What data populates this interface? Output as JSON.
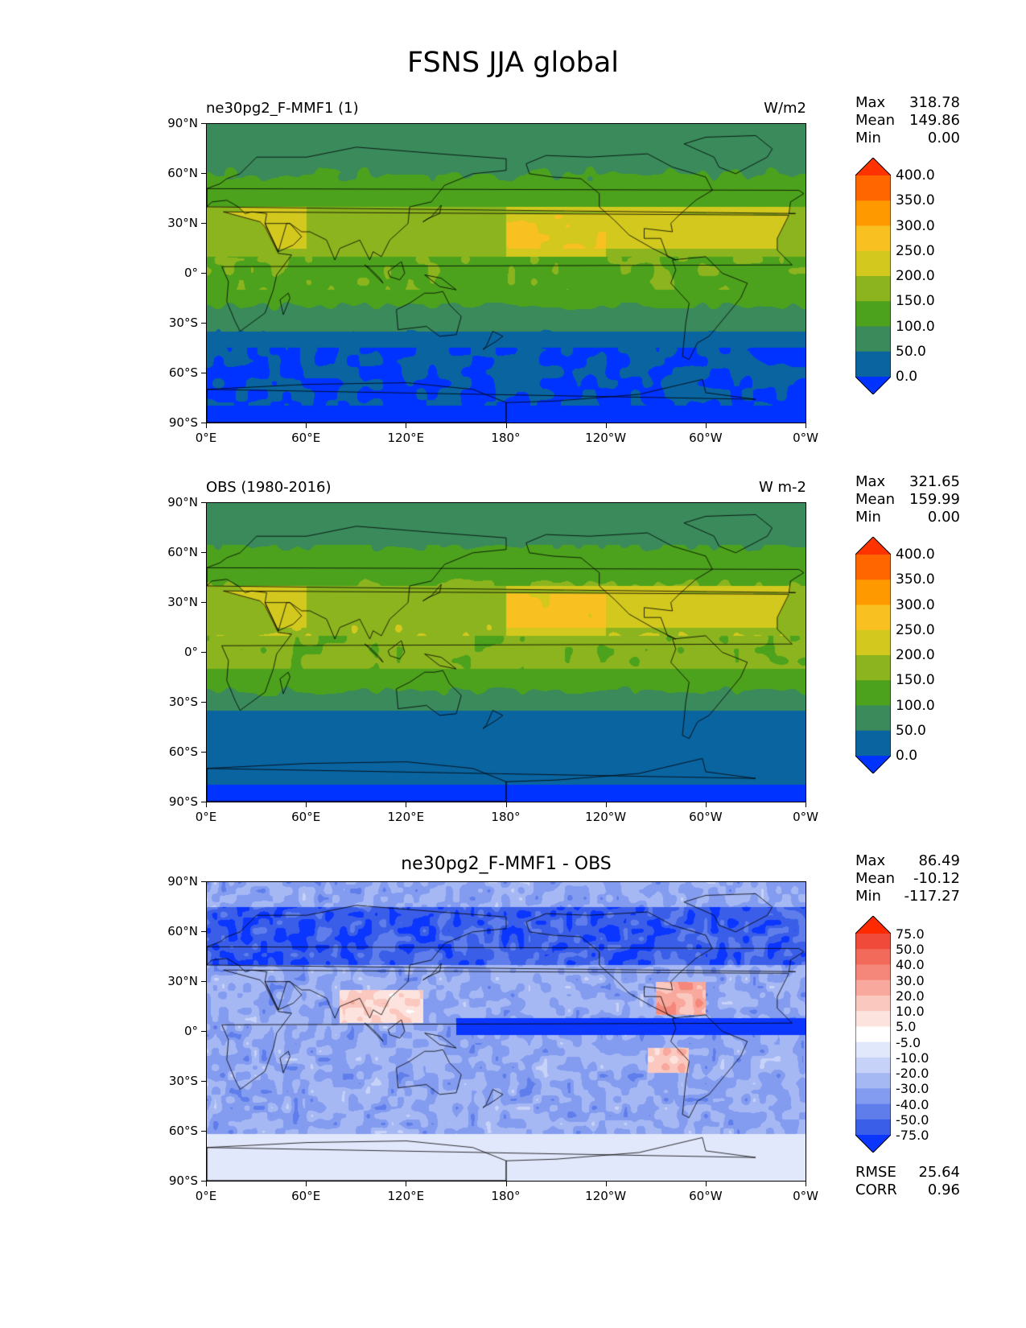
{
  "figure": {
    "title": "FSNS JJA global"
  },
  "panels": [
    {
      "id": "model",
      "title_left": "ne30pg2_F-MMF1 (1)",
      "title_right": "W/m2",
      "title_center": "",
      "stats": {
        "max_label": "Max",
        "max": "318.78",
        "mean_label": "Mean",
        "mean": "149.86",
        "min_label": "Min",
        "min": "0.00"
      },
      "colorbar": {
        "levels": [
          "400.0",
          "350.0",
          "300.0",
          "250.0",
          "200.0",
          "150.0",
          "100.0",
          "50.0",
          "0.0"
        ],
        "colors": [
          "#ff3300",
          "#ff6600",
          "#ff9900",
          "#f8c020",
          "#d2c81e",
          "#8cb41e",
          "#4ca21c",
          "#3a8a5c",
          "#0a64a0",
          "#0033ff"
        ]
      }
    },
    {
      "id": "obs",
      "title_left": "OBS (1980-2016)",
      "title_right": "W m-2",
      "title_center": "",
      "stats": {
        "max_label": "Max",
        "max": "321.65",
        "mean_label": "Mean",
        "mean": "159.99",
        "min_label": "Min",
        "min": "0.00"
      },
      "colorbar": {
        "levels": [
          "400.0",
          "350.0",
          "300.0",
          "250.0",
          "200.0",
          "150.0",
          "100.0",
          "50.0",
          "0.0"
        ],
        "colors": [
          "#ff3300",
          "#ff6600",
          "#ff9900",
          "#f8c020",
          "#d2c81e",
          "#8cb41e",
          "#4ca21c",
          "#3a8a5c",
          "#0a64a0",
          "#0033ff"
        ]
      }
    },
    {
      "id": "diff",
      "title_left": "",
      "title_right": "",
      "title_center": "ne30pg2_F-MMF1 - OBS",
      "stats": {
        "max_label": "Max",
        "max": "86.49",
        "mean_label": "Mean",
        "mean": "-10.12",
        "min_label": "Min",
        "min": "-117.27"
      },
      "metrics": {
        "rmse_label": "RMSE",
        "rmse": "25.64",
        "corr_label": "CORR",
        "corr": "0.96"
      },
      "colorbar": {
        "levels": [
          "75.0",
          "50.0",
          "40.0",
          "30.0",
          "20.0",
          "10.0",
          "5.0",
          "-5.0",
          "-10.0",
          "-20.0",
          "-30.0",
          "-40.0",
          "-50.0",
          "-75.0"
        ],
        "colors": [
          "#ff2a00",
          "#f04a3a",
          "#f26a5a",
          "#f5877a",
          "#f8a89c",
          "#fbc8bf",
          "#fde3de",
          "#ffffff",
          "#e2e8fb",
          "#c6d2f8",
          "#a6b8f4",
          "#849cf0",
          "#5f7eec",
          "#3a5ee8",
          "#0a36ff"
        ]
      }
    }
  ],
  "axes": {
    "lat_ticks": [
      "90°N",
      "60°N",
      "30°N",
      "0°",
      "30°S",
      "60°S",
      "90°S"
    ],
    "lon_ticks": [
      "0°E",
      "60°E",
      "120°E",
      "180°",
      "120°W",
      "60°W",
      "0°W"
    ]
  }
}
